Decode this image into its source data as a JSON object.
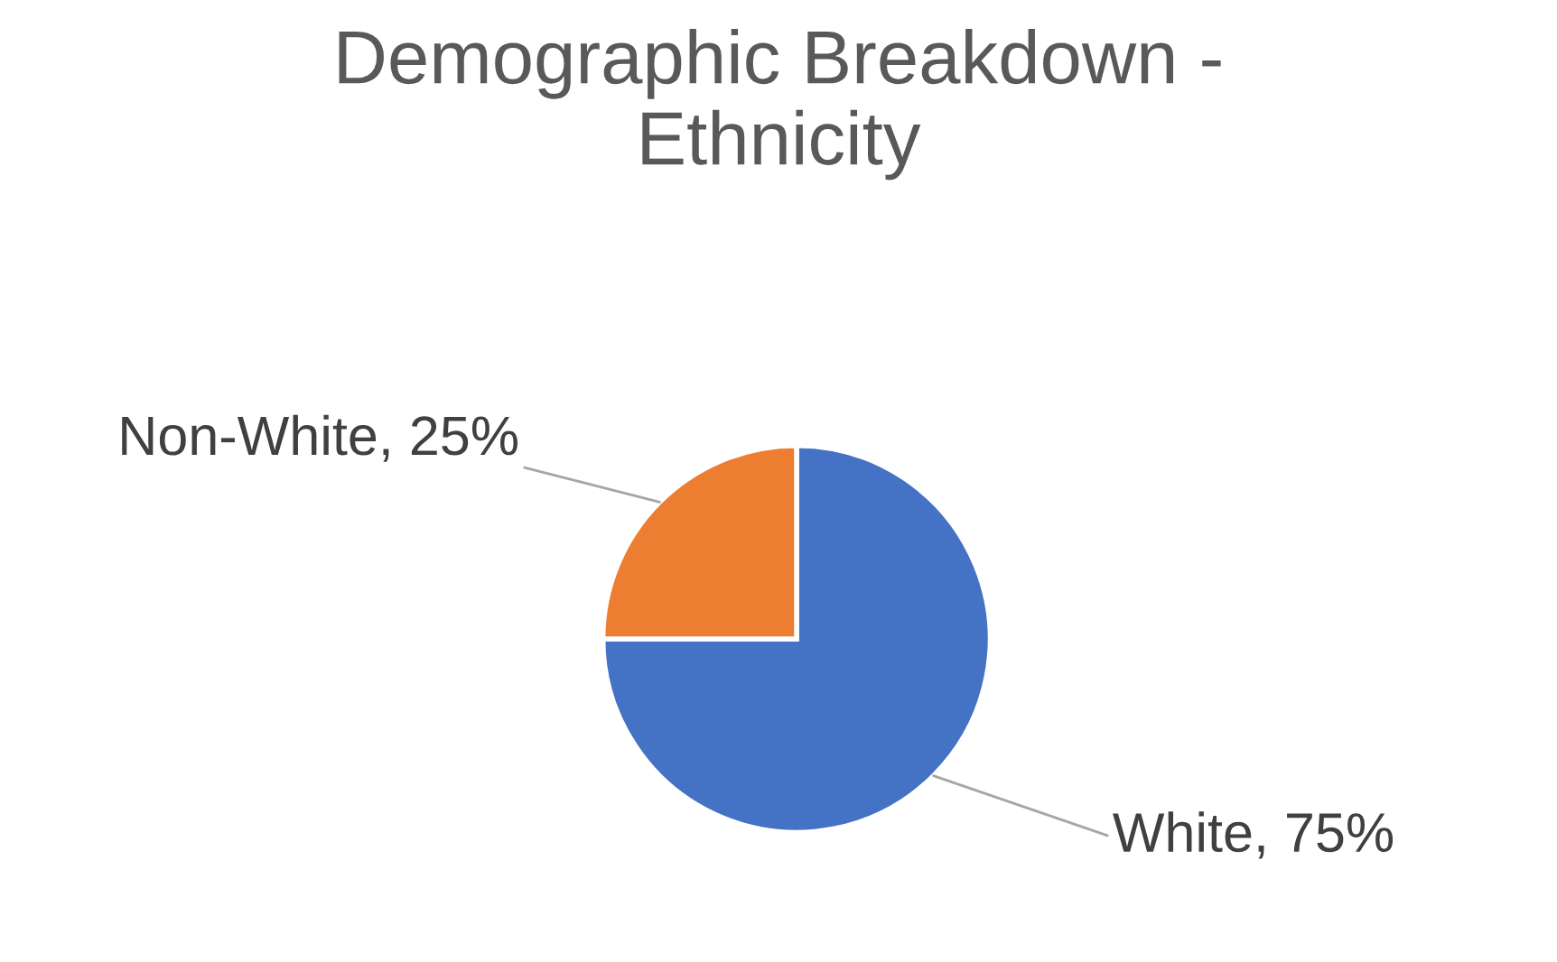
{
  "chart_data": {
    "type": "pie",
    "title": "Demographic Breakdown -\nEthnicity",
    "categories": [
      "White",
      "Non-White"
    ],
    "values": [
      75,
      25
    ],
    "value_labels": [
      "75%",
      "25%"
    ],
    "colors": [
      "#4472c4",
      "#ed7d31"
    ],
    "data_labels": true,
    "legend": false
  }
}
